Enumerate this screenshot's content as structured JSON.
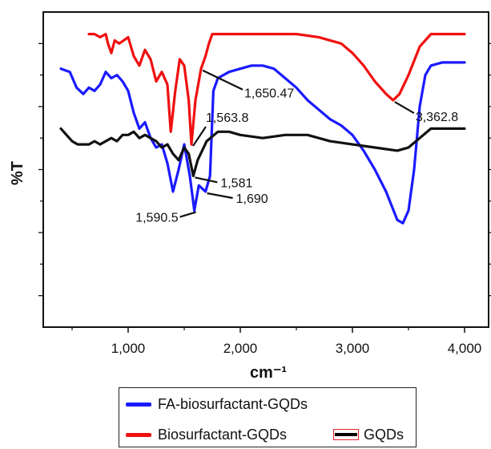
{
  "chart_data": {
    "type": "line",
    "xlabel": "cm⁻¹",
    "ylabel": "%T",
    "xlim": [
      400,
      4000
    ],
    "x_ticks": [
      1000,
      2000,
      3000,
      4000
    ],
    "x_tick_labels": [
      "1,000",
      "2,000",
      "3,000",
      "4,000"
    ],
    "grid": false,
    "legend_position": "bottom",
    "series": [
      {
        "name": "FA-biosurfactant-GQDs",
        "color": "#1a1aff",
        "points": [
          [
            400,
            0.82
          ],
          [
            480,
            0.81
          ],
          [
            540,
            0.76
          ],
          [
            600,
            0.74
          ],
          [
            650,
            0.76
          ],
          [
            700,
            0.75
          ],
          [
            750,
            0.77
          ],
          [
            800,
            0.81
          ],
          [
            850,
            0.79
          ],
          [
            900,
            0.8
          ],
          [
            950,
            0.78
          ],
          [
            1000,
            0.75
          ],
          [
            1050,
            0.68
          ],
          [
            1100,
            0.63
          ],
          [
            1150,
            0.65
          ],
          [
            1200,
            0.6
          ],
          [
            1250,
            0.57
          ],
          [
            1300,
            0.58
          ],
          [
            1350,
            0.52
          ],
          [
            1400,
            0.43
          ],
          [
            1450,
            0.5
          ],
          [
            1500,
            0.58
          ],
          [
            1550,
            0.48
          ],
          [
            1590,
            0.37
          ],
          [
            1630,
            0.45
          ],
          [
            1690,
            0.43
          ],
          [
            1730,
            0.48
          ],
          [
            1760,
            0.75
          ],
          [
            1800,
            0.79
          ],
          [
            1900,
            0.81
          ],
          [
            2000,
            0.82
          ],
          [
            2100,
            0.83
          ],
          [
            2200,
            0.83
          ],
          [
            2300,
            0.82
          ],
          [
            2400,
            0.79
          ],
          [
            2500,
            0.76
          ],
          [
            2600,
            0.72
          ],
          [
            2700,
            0.69
          ],
          [
            2800,
            0.66
          ],
          [
            2900,
            0.64
          ],
          [
            3000,
            0.61
          ],
          [
            3100,
            0.56
          ],
          [
            3200,
            0.5
          ],
          [
            3300,
            0.43
          ],
          [
            3400,
            0.34
          ],
          [
            3450,
            0.33
          ],
          [
            3500,
            0.37
          ],
          [
            3550,
            0.5
          ],
          [
            3600,
            0.7
          ],
          [
            3650,
            0.8
          ],
          [
            3700,
            0.83
          ],
          [
            3800,
            0.84
          ],
          [
            4000,
            0.84
          ]
        ]
      },
      {
        "name": "Biosurfactant-GQDs",
        "color": "#f01010",
        "points": [
          [
            650,
            0.93
          ],
          [
            700,
            0.93
          ],
          [
            750,
            0.92
          ],
          [
            800,
            0.93
          ],
          [
            820,
            0.9
          ],
          [
            850,
            0.87
          ],
          [
            880,
            0.91
          ],
          [
            920,
            0.9
          ],
          [
            960,
            0.91
          ],
          [
            1000,
            0.92
          ],
          [
            1050,
            0.86
          ],
          [
            1100,
            0.83
          ],
          [
            1150,
            0.88
          ],
          [
            1200,
            0.85
          ],
          [
            1250,
            0.78
          ],
          [
            1300,
            0.81
          ],
          [
            1350,
            0.77
          ],
          [
            1380,
            0.62
          ],
          [
            1420,
            0.75
          ],
          [
            1460,
            0.85
          ],
          [
            1500,
            0.83
          ],
          [
            1540,
            0.72
          ],
          [
            1564,
            0.58
          ],
          [
            1600,
            0.72
          ],
          [
            1650,
            0.82
          ],
          [
            1690,
            0.86
          ],
          [
            1720,
            0.9
          ],
          [
            1750,
            0.93
          ],
          [
            2000,
            0.93
          ],
          [
            2500,
            0.93
          ],
          [
            2700,
            0.92
          ],
          [
            2900,
            0.9
          ],
          [
            3000,
            0.87
          ],
          [
            3100,
            0.83
          ],
          [
            3200,
            0.78
          ],
          [
            3300,
            0.74
          ],
          [
            3363,
            0.72
          ],
          [
            3420,
            0.74
          ],
          [
            3500,
            0.8
          ],
          [
            3600,
            0.89
          ],
          [
            3700,
            0.93
          ],
          [
            4000,
            0.93
          ]
        ]
      },
      {
        "name": "GQDs",
        "color": "#111111",
        "points": [
          [
            400,
            0.63
          ],
          [
            450,
            0.61
          ],
          [
            500,
            0.59
          ],
          [
            550,
            0.58
          ],
          [
            600,
            0.58
          ],
          [
            650,
            0.58
          ],
          [
            700,
            0.59
          ],
          [
            750,
            0.58
          ],
          [
            800,
            0.59
          ],
          [
            850,
            0.6
          ],
          [
            900,
            0.59
          ],
          [
            950,
            0.61
          ],
          [
            1000,
            0.61
          ],
          [
            1050,
            0.62
          ],
          [
            1100,
            0.6
          ],
          [
            1150,
            0.61
          ],
          [
            1200,
            0.6
          ],
          [
            1250,
            0.59
          ],
          [
            1300,
            0.57
          ],
          [
            1350,
            0.58
          ],
          [
            1400,
            0.55
          ],
          [
            1450,
            0.53
          ],
          [
            1500,
            0.57
          ],
          [
            1540,
            0.55
          ],
          [
            1581,
            0.48
          ],
          [
            1620,
            0.53
          ],
          [
            1700,
            0.59
          ],
          [
            1800,
            0.62
          ],
          [
            1900,
            0.62
          ],
          [
            2000,
            0.61
          ],
          [
            2200,
            0.6
          ],
          [
            2400,
            0.61
          ],
          [
            2600,
            0.61
          ],
          [
            2800,
            0.59
          ],
          [
            3000,
            0.58
          ],
          [
            3200,
            0.57
          ],
          [
            3400,
            0.56
          ],
          [
            3500,
            0.57
          ],
          [
            3600,
            0.6
          ],
          [
            3700,
            0.63
          ],
          [
            3800,
            0.63
          ],
          [
            4000,
            0.63
          ]
        ]
      }
    ],
    "annotations": [
      {
        "text": "1,590.5",
        "x": 1590,
        "series": 0
      },
      {
        "text": "1,690",
        "x": 1690,
        "series": 0
      },
      {
        "text": "1,650.47",
        "x": 1650,
        "series": 1
      },
      {
        "text": "3,362.8",
        "x": 3363,
        "series": 1
      },
      {
        "text": "1,563.8",
        "x": 1564,
        "series": 1
      },
      {
        "text": "1,581",
        "x": 1581,
        "series": 2
      }
    ]
  }
}
